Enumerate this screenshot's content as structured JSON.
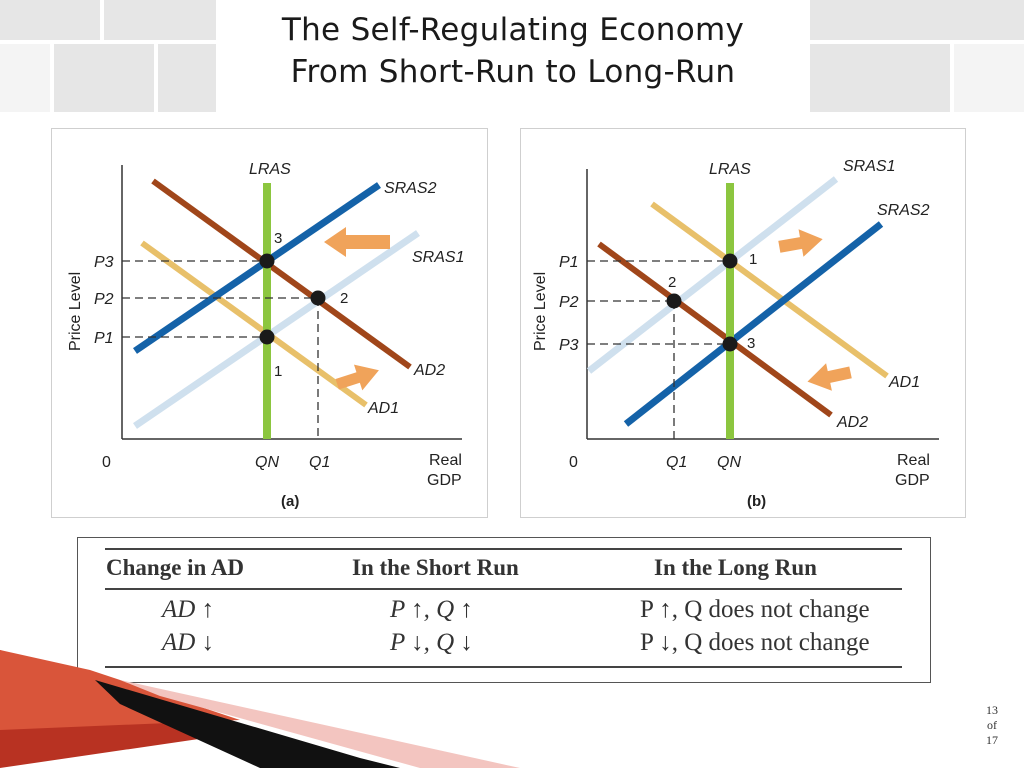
{
  "slide": {
    "title_line1": "The Self-Regulating Economy",
    "title_line2": "From Short-Run to Long-Run",
    "page_current": "13",
    "page_of": "of",
    "page_total": "17",
    "accent_colors": {
      "swoosh_red": "#c0392b",
      "swoosh_black": "#111111"
    }
  },
  "diagram_a": {
    "caption": "(a)",
    "y_axis_label": "Price Level",
    "origin_label": "0",
    "x_axis_label_line1": "Real",
    "x_axis_label_line2": "GDP",
    "price_labels": [
      "P3",
      "P2",
      "P1"
    ],
    "quantity_labels": [
      "QN",
      "Q1"
    ],
    "curve_labels": {
      "lras": "LRAS",
      "sras2": "SRAS2",
      "sras1": "SRAS1",
      "ad2": "AD2",
      "ad1": "AD1"
    },
    "point_labels": [
      "3",
      "2",
      "1"
    ],
    "colors": {
      "lras": "#8cc63f",
      "sras2": "#1462a8",
      "sras1": "#cfe0ee",
      "ad2": "#a0461a",
      "ad1": "#e8c06a",
      "arrow": "#f0a35a"
    }
  },
  "diagram_b": {
    "caption": "(b)",
    "y_axis_label": "Price Level",
    "origin_label": "0",
    "x_axis_label_line1": "Real",
    "x_axis_label_line2": "GDP",
    "price_labels": [
      "P1",
      "P2",
      "P3"
    ],
    "quantity_labels": [
      "Q1",
      "QN"
    ],
    "curve_labels": {
      "lras": "LRAS",
      "sras1": "SRAS1",
      "sras2": "SRAS2",
      "ad1": "AD1",
      "ad2": "AD2"
    },
    "point_labels": [
      "1",
      "2",
      "3"
    ]
  },
  "table": {
    "headers": [
      "Change in AD",
      "In the Short Run",
      "In the Long Run"
    ],
    "rows": [
      [
        "AD ↑",
        "P ↑, Q ↑",
        "P ↑, Q does not change"
      ],
      [
        "AD ↓",
        "P ↓, Q ↓",
        "P ↓, Q does not change"
      ]
    ]
  }
}
